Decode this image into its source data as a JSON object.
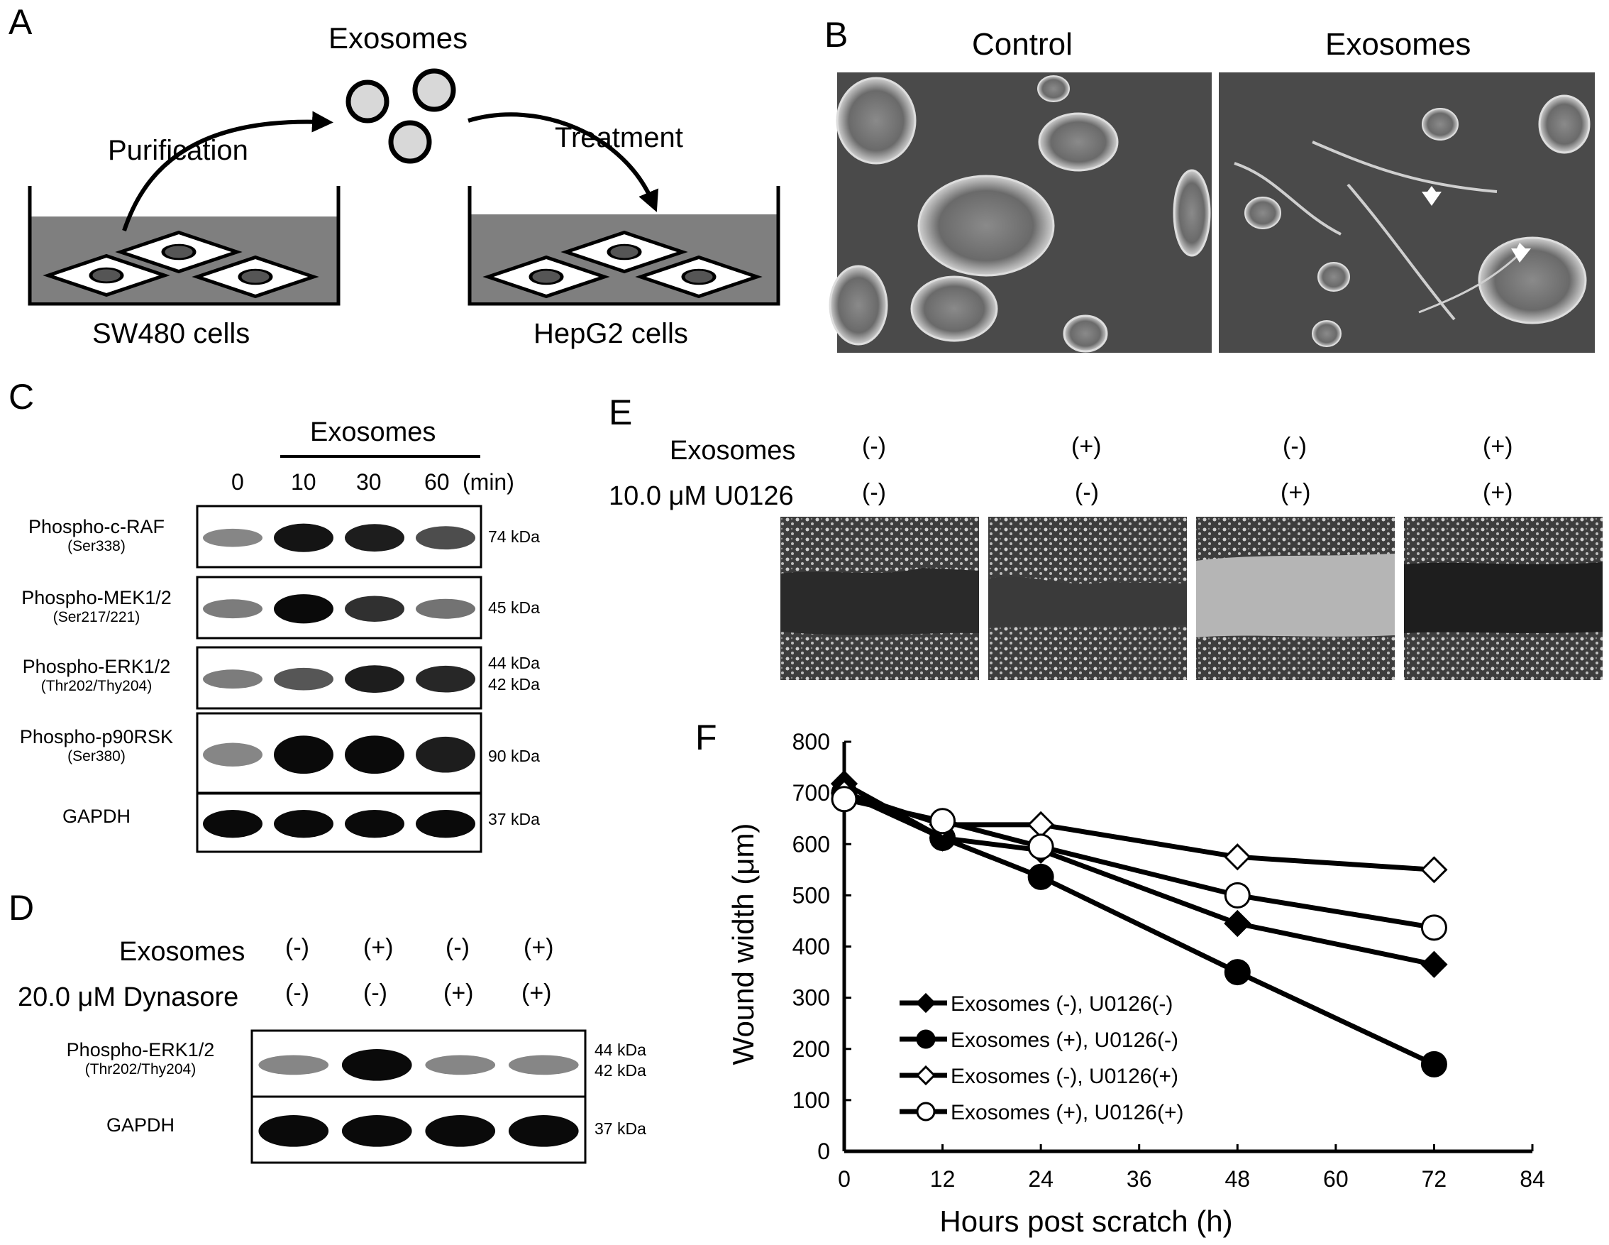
{
  "panels": {
    "a": {
      "letter": "A",
      "exosomes": "Exosomes",
      "purification": "Purification",
      "treatment": "Treatment",
      "source_cells": "SW480 cells",
      "target_cells": "HepG2 cells"
    },
    "b": {
      "letter": "B",
      "control": "Control",
      "exosomes": "Exosomes"
    },
    "c": {
      "letter": "C",
      "exosomes": "Exosomes",
      "timepoints": [
        "0",
        "10",
        "30",
        "60"
      ],
      "unit": "(min)",
      "rows": [
        {
          "label": "Phospho-c-RAF",
          "sub": "(Ser338)",
          "kda": [
            "74 kDa"
          ],
          "bands": [
            0.35,
            0.95,
            0.9,
            0.65
          ]
        },
        {
          "label": "Phospho-MEK1/2",
          "sub": "(Ser217/221)",
          "kda": [
            "45 kDa"
          ],
          "bands": [
            0.4,
            1.0,
            0.8,
            0.45
          ]
        },
        {
          "label": "Phospho-ERK1/2",
          "sub": "(Thr202/Thy204)",
          "kda": [
            "44 kDa",
            "42 kDa"
          ],
          "bands": [
            0.4,
            0.6,
            0.9,
            0.85
          ]
        },
        {
          "label": "Phospho-p90RSK",
          "sub": "(Ser380)",
          "kda": [
            "90 kDa"
          ],
          "bands": [
            0.35,
            1.0,
            1.0,
            0.9
          ]
        },
        {
          "label": "GAPDH",
          "sub": "",
          "kda": [
            "37 kDa"
          ],
          "bands": [
            1.0,
            1.0,
            1.0,
            1.0
          ]
        }
      ]
    },
    "d": {
      "letter": "D",
      "exosomes": "Exosomes",
      "dynasore": "20.0 μM Dynasore",
      "exo_signs": [
        "(-)",
        "(+)",
        "(-)",
        "(+)"
      ],
      "dyn_signs": [
        "(-)",
        "(-)",
        "(+)",
        "(+)"
      ],
      "rows": [
        {
          "label": "Phospho-ERK1/2",
          "sub": "(Thr202/Thy204)",
          "kda": [
            "44 kDa",
            "42 kDa"
          ],
          "bands": [
            0.35,
            1.0,
            0.35,
            0.35
          ]
        },
        {
          "label": "GAPDH",
          "sub": "",
          "kda": [
            "37 kDa"
          ],
          "bands": [
            1.0,
            1.0,
            1.0,
            1.0
          ]
        }
      ]
    },
    "e": {
      "letter": "E",
      "exosomes": "Exosomes",
      "u0126": "10.0 μM U0126",
      "exo_signs": [
        "(-)",
        "(+)",
        "(-)",
        "(+)"
      ],
      "u_signs": [
        "(-)",
        "(-)",
        "(+)",
        "(+)"
      ]
    },
    "f": {
      "letter": "F"
    }
  },
  "chart_data": {
    "type": "line",
    "xlabel": "Hours post scratch (h)",
    "ylabel": "Wound width (μm)",
    "xlim": [
      0,
      84
    ],
    "ylim": [
      0,
      800
    ],
    "xticks": [
      0,
      12,
      24,
      36,
      48,
      60,
      72,
      84
    ],
    "yticks": [
      0,
      100,
      200,
      300,
      400,
      500,
      600,
      700,
      800
    ],
    "legend_position": "bottom-left",
    "grid": false,
    "x": [
      0,
      12,
      24,
      48,
      72
    ],
    "series": [
      {
        "name": "Exosomes (-), U0126(-)",
        "marker": "filled-diamond",
        "values": [
          718,
          612,
          588,
          445,
          365
        ]
      },
      {
        "name": "Exosomes (+), U0126(-)",
        "marker": "filled-circle",
        "values": [
          700,
          612,
          536,
          350,
          170
        ]
      },
      {
        "name": "Exosomes (-), U0126(+)",
        "marker": "open-diamond",
        "values": [
          700,
          638,
          638,
          575,
          550
        ]
      },
      {
        "name": "Exosomes (+), U0126(+)",
        "marker": "open-circle",
        "values": [
          688,
          645,
          595,
          500,
          437
        ]
      }
    ]
  }
}
